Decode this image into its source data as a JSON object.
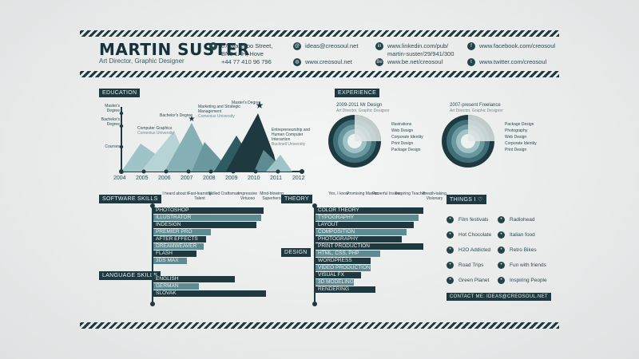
{
  "header": {
    "name": "MARTIN SUSTER",
    "role": "Art Director, Graphic Designer",
    "address_line1": "67 Waterloo Street,",
    "address_line2": "BN3 1AH, Hove",
    "address_line3": "+44 77 410 96 796",
    "email": "ideas@creosoul.net",
    "website": "www.creosoul.net",
    "linkedin_line1": "www.linkedin.com/pub/",
    "linkedin_line2": "martin-suster/29/941/300",
    "behance": "www.be.net/creosoul",
    "facebook": "www.facebook.com/creosoul",
    "twitter": "www.twitter.com/creosoul"
  },
  "education": {
    "title": "EDUCATION",
    "y_levels": [
      "Master's Degree",
      "Bachelor's Degree",
      "Courses"
    ],
    "years": [
      "2004",
      "2005",
      "2006",
      "2007",
      "2008",
      "2009",
      "2010",
      "2011",
      "2012"
    ],
    "notes": [
      {
        "text": "Computer Graphics",
        "sub": "Comenius University"
      },
      {
        "text": "Bachelor's Degree",
        "sub": ""
      },
      {
        "text": "Marketing and Strategic Management",
        "sub": "Comenius University"
      },
      {
        "text": "Master's Degree",
        "sub": ""
      },
      {
        "text": "Entrepreneurship and Human Computer Interaction",
        "sub": "Bucknell University"
      }
    ]
  },
  "experience": {
    "title": "EXPERIENCE",
    "jobs": [
      {
        "title": "2009-2011 Mr Design",
        "subtitle": "Art Director, Graphic Designer",
        "items": [
          "Illustrations",
          "Web Design",
          "Corporate Identity",
          "Print Design",
          "Package Design"
        ]
      },
      {
        "title": "2007-present Freelance",
        "subtitle": "Art Director, Graphic Designer",
        "items": [
          "Package Design",
          "Photography",
          "Web Design",
          "Corporate Identity",
          "Print Design"
        ]
      }
    ]
  },
  "software": {
    "title": "SOFTWARE SKILLS",
    "levels": [
      "I heard about it",
      "Fast-learning Talent",
      "Skilled Craftsman",
      "Impressive Virtuoso",
      "Mind-blowing Superhero"
    ],
    "skills": [
      {
        "label": "PHOTOSHOP",
        "value": 4.6
      },
      {
        "label": "ILLUSTRATOR",
        "value": 4.5
      },
      {
        "label": "INDESIGN",
        "value": 4.3
      },
      {
        "label": "PREMIER PRO",
        "value": 2.4
      },
      {
        "label": "AFTER EFFECTS",
        "value": 2.2
      },
      {
        "label": "DREAMWEAVER",
        "value": 2.1
      },
      {
        "label": "FLASH",
        "value": 1.8
      },
      {
        "label": "3DS MAX",
        "value": 1.4
      }
    ]
  },
  "language": {
    "title": "LANGUAGE SKILLS",
    "skills": [
      {
        "label": "ENGLISH",
        "value": 3.4
      },
      {
        "label": "GERMAN",
        "value": 1.9
      },
      {
        "label": "SLOVAK",
        "value": 4.7
      }
    ]
  },
  "theory": {
    "title": "THEORY",
    "levels": [
      "Yes, I know",
      "Promising Maniac",
      "Powerful Insider",
      "Inspiring Teacher",
      "Breath-taking Visionary"
    ],
    "skills": [
      {
        "label": "COLOR THEORY",
        "value": 4.5
      },
      {
        "label": "TYPOGRAPHY",
        "value": 4.3
      },
      {
        "label": "LAYOUT",
        "value": 4.1
      },
      {
        "label": "COMPOSITION",
        "value": 3.8
      },
      {
        "label": "PHOTOGRAPHY",
        "value": 3.6
      }
    ]
  },
  "design": {
    "title": "DESIGN",
    "skills": [
      {
        "label": "PRINT PRODUCTION",
        "value": 4.5
      },
      {
        "label": "HTML, CSS, PHP",
        "value": 2.7
      },
      {
        "label": "WORDPRESS",
        "value": 2.3
      },
      {
        "label": "VIDEO PRODUCTION",
        "value": 2.3
      },
      {
        "label": "VISUAL FX",
        "value": 1.9
      },
      {
        "label": "3D MODELING",
        "value": 1.6
      },
      {
        "label": "RENDERING",
        "value": 2.5
      }
    ]
  },
  "things": {
    "title": "THINGS I ♡",
    "left": [
      {
        "label": "Film festivals",
        "icon": "film-icon"
      },
      {
        "label": "Hot Chocolate",
        "icon": "cup-icon"
      },
      {
        "label": "H2O Addicted",
        "icon": "h2o-icon"
      },
      {
        "label": "Road Trips",
        "icon": "car-icon"
      },
      {
        "label": "Green Planet",
        "icon": "leaf-icon"
      }
    ],
    "right": [
      {
        "label": "Radiohead",
        "icon": "music-icon"
      },
      {
        "label": "Italian food",
        "icon": "food-icon"
      },
      {
        "label": "Retro Bikes",
        "icon": "bike-icon"
      },
      {
        "label": "Fun with friends",
        "icon": "people-icon"
      },
      {
        "label": "Inspiring People",
        "icon": "bulb-icon"
      }
    ],
    "contact": "CONTACT ME: IDEAS@CREOSOUL.NET"
  },
  "colors": {
    "dark": "#1e3a40",
    "mid": "#3f6f77",
    "light": "#5e8a91",
    "pale": "#9fc3c7"
  }
}
